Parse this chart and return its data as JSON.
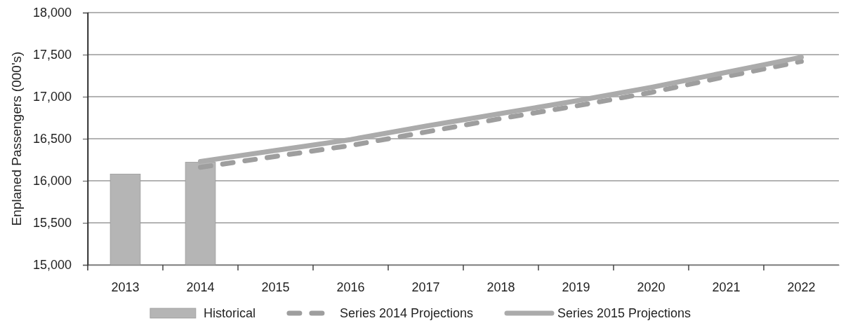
{
  "chart_data": {
    "type": "bar",
    "categories": [
      "2013",
      "2014",
      "2015",
      "2016",
      "2017",
      "2018",
      "2019",
      "2020",
      "2021",
      "2022"
    ],
    "series": [
      {
        "name": "Historical",
        "color": "#b5b5b5",
        "values": [
          16080,
          16220,
          null,
          null,
          null,
          null,
          null,
          null,
          null,
          null
        ]
      },
      {
        "name": "Series 2014 Projections",
        "type": "line",
        "line_style": "dashed",
        "color": "#9e9e9e",
        "values": [
          null,
          16160,
          16290,
          16420,
          16580,
          16740,
          16890,
          17050,
          17240,
          17420
        ]
      },
      {
        "name": "Series 2015 Projections",
        "type": "line",
        "line_style": "solid",
        "color": "#ababab",
        "values": [
          null,
          16230,
          16360,
          16490,
          16650,
          16800,
          16950,
          17110,
          17290,
          17470
        ]
      }
    ],
    "ylabel": "Enplaned Passengers (000's)",
    "ylim": [
      15000,
      18000
    ],
    "yticks": [
      {
        "value": 15000,
        "label": "15,000"
      },
      {
        "value": 15500,
        "label": "15,500"
      },
      {
        "value": 16000,
        "label": "16,000"
      },
      {
        "value": 16500,
        "label": "16,500"
      },
      {
        "value": 17000,
        "label": "17,000"
      },
      {
        "value": 17500,
        "label": "17,500"
      },
      {
        "value": 18000,
        "label": "18,000"
      }
    ],
    "grid": "y",
    "legend": "bottom"
  }
}
